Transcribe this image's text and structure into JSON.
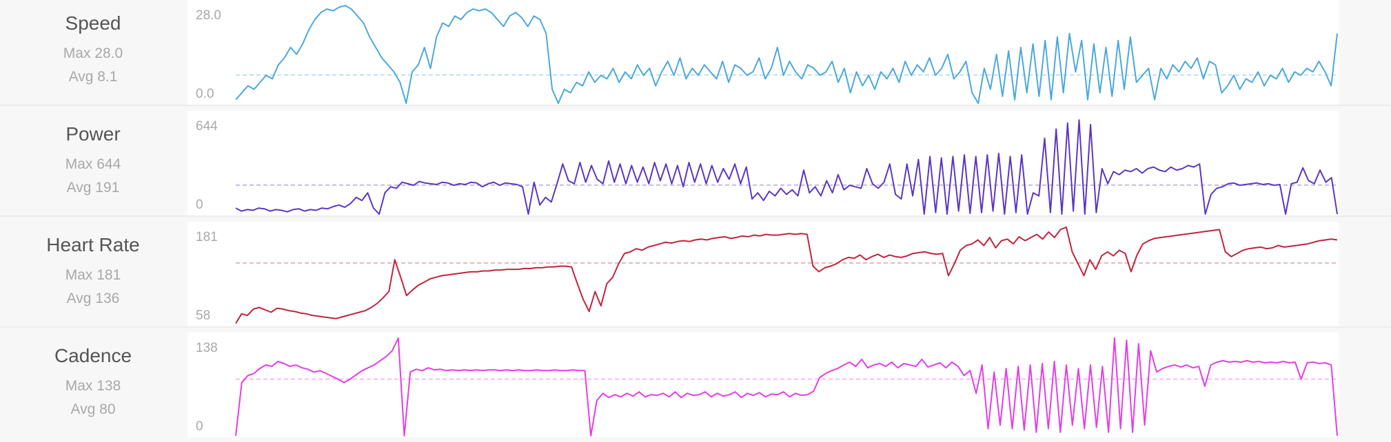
{
  "chart_data": [
    {
      "type": "line",
      "title": "Speed",
      "max_label": "Max 28.0",
      "avg_label": "Avg 8.1",
      "ylim": [
        0,
        28.0
      ],
      "y_ticks": [
        "28.0",
        "0.0"
      ],
      "avg": 8.1,
      "color": "#4aa8dc",
      "grid": false,
      "values": [
        1,
        3,
        5,
        4,
        6,
        8,
        7,
        11,
        13,
        16,
        14,
        17,
        21,
        24,
        26,
        27,
        26.5,
        27.5,
        28,
        27,
        25,
        23,
        19,
        16,
        13,
        11,
        9,
        6,
        0,
        9,
        11,
        16,
        10,
        19,
        23,
        22,
        25,
        24,
        26,
        27,
        26.5,
        27,
        26,
        24,
        22,
        25,
        26,
        24.5,
        22,
        25,
        24,
        20,
        4,
        0,
        4,
        3,
        6,
        5,
        9,
        6,
        8,
        7,
        10,
        6,
        9,
        7,
        11,
        8,
        10,
        5,
        9,
        12,
        8,
        13,
        7,
        10,
        8,
        11,
        9,
        7,
        12,
        6,
        11,
        10,
        8,
        9,
        13,
        7,
        10,
        16,
        8,
        12,
        9,
        7,
        11,
        10,
        8,
        9,
        12,
        6,
        10,
        3,
        9,
        5,
        8,
        4,
        9,
        7,
        10,
        6,
        12,
        8,
        11,
        9,
        13,
        8,
        10,
        14,
        7,
        9,
        12,
        3,
        0,
        10,
        4,
        14,
        2,
        15,
        1,
        16,
        3,
        17,
        2,
        18,
        1,
        19,
        3,
        20,
        9,
        18,
        1,
        17,
        3,
        16,
        2,
        18,
        4,
        19,
        6,
        8,
        10,
        1,
        10,
        7,
        11,
        9,
        12,
        10,
        13,
        7,
        12,
        11,
        3,
        5,
        8,
        4,
        7,
        6,
        9,
        5,
        8,
        7,
        10,
        6,
        9,
        8,
        10,
        9,
        12,
        9,
        5,
        20
      ]
    },
    {
      "type": "line",
      "title": "Power",
      "max_label": "Max 644",
      "avg_label": "Avg 191",
      "ylim": [
        0,
        644
      ],
      "y_ticks": [
        "644",
        "0"
      ],
      "avg": 191,
      "color": "#5b36c2",
      "grid": false,
      "values": [
        40,
        20,
        30,
        25,
        40,
        35,
        20,
        30,
        25,
        15,
        30,
        35,
        20,
        30,
        25,
        40,
        35,
        50,
        60,
        45,
        70,
        110,
        90,
        140,
        40,
        0,
        140,
        180,
        170,
        210,
        200,
        190,
        215,
        205,
        200,
        195,
        210,
        205,
        190,
        200,
        195,
        210,
        205,
        180,
        200,
        210,
        190,
        205,
        200,
        195,
        180,
        0,
        210,
        60,
        110,
        80,
        200,
        330,
        220,
        200,
        340,
        210,
        320,
        230,
        200,
        350,
        210,
        330,
        200,
        320,
        210,
        310,
        200,
        340,
        220,
        330,
        200,
        320,
        180,
        340,
        210,
        330,
        200,
        320,
        210,
        300,
        230,
        330,
        200,
        310,
        100,
        140,
        90,
        150,
        120,
        170,
        130,
        160,
        120,
        290,
        140,
        180,
        120,
        220,
        140,
        260,
        160,
        190,
        180,
        170,
        300,
        200,
        170,
        210,
        330,
        130,
        100,
        330,
        120,
        360,
        0,
        380,
        10,
        370,
        0,
        380,
        20,
        390,
        5,
        380,
        10,
        390,
        20,
        400,
        0,
        380,
        10,
        390,
        0,
        140,
        120,
        500,
        10,
        560,
        0,
        600,
        20,
        620,
        0,
        590,
        10,
        300,
        200,
        280,
        260,
        290,
        280,
        300,
        270,
        300,
        310,
        290,
        280,
        310,
        290,
        300,
        320,
        310,
        330,
        0,
        130,
        170,
        180,
        200,
        205,
        190,
        195,
        200,
        205,
        195,
        200,
        190,
        195,
        0,
        200,
        210,
        305,
        220,
        200,
        290,
        210,
        240,
        0
      ]
    },
    {
      "type": "line",
      "title": "Heart Rate",
      "max_label": "Max 181",
      "avg_label": "Avg 136",
      "ylim": [
        58,
        181
      ],
      "y_ticks": [
        "181",
        "58"
      ],
      "avg": 136,
      "color": "#c0243c",
      "grid": false,
      "values": [
        60,
        72,
        70,
        78,
        80,
        77,
        74,
        79,
        78,
        76,
        75,
        73,
        72,
        70,
        69,
        68,
        67,
        66,
        68,
        70,
        72,
        74,
        76,
        80,
        85,
        92,
        100,
        140,
        118,
        95,
        102,
        108,
        112,
        116,
        118,
        120,
        121,
        122,
        123,
        124,
        125,
        125,
        126,
        126,
        127,
        127,
        128,
        128,
        128,
        129,
        129,
        130,
        130,
        131,
        131,
        132,
        132,
        131,
        110,
        90,
        75,
        100,
        82,
        110,
        118,
        135,
        148,
        150,
        154,
        152,
        156,
        158,
        160,
        162,
        161,
        163,
        164,
        163,
        165,
        166,
        165,
        167,
        168,
        169,
        167,
        168,
        170,
        169,
        171,
        170,
        172,
        171,
        171,
        172,
        173,
        172,
        173,
        172,
        132,
        125,
        130,
        132,
        135,
        140,
        143,
        142,
        146,
        140,
        144,
        147,
        143,
        146,
        144,
        143,
        145,
        148,
        149,
        150,
        148,
        147,
        148,
        120,
        135,
        152,
        158,
        160,
        165,
        158,
        168,
        155,
        164,
        166,
        160,
        169,
        164,
        168,
        172,
        166,
        175,
        168,
        178,
        181,
        150,
        135,
        120,
        140,
        128,
        145,
        150,
        145,
        152,
        148,
        125,
        146,
        160,
        164,
        167,
        168,
        169,
        170,
        171,
        172,
        173,
        174,
        175,
        176,
        177,
        178,
        150,
        144,
        148,
        152,
        154,
        155,
        156,
        154,
        155,
        158,
        156,
        157,
        158,
        159,
        160,
        162,
        164,
        165,
        166,
        165
      ]
    },
    {
      "type": "line",
      "title": "Cadence",
      "max_label": "Max 138",
      "avg_label": "Avg 80",
      "ylim": [
        0,
        138
      ],
      "y_ticks": [
        "138",
        "0"
      ],
      "avg": 80,
      "color": "#e33de6",
      "grid": false,
      "values": [
        0,
        75,
        85,
        88,
        95,
        100,
        98,
        105,
        102,
        98,
        100,
        96,
        94,
        90,
        92,
        88,
        84,
        80,
        75,
        80,
        86,
        92,
        96,
        100,
        106,
        112,
        120,
        138,
        0,
        90,
        94,
        92,
        96,
        93,
        94,
        92,
        93,
        92,
        93,
        92,
        93,
        92,
        93,
        93,
        92,
        93,
        92,
        93,
        92,
        92,
        93,
        92,
        92,
        93,
        92,
        92,
        93,
        92,
        92,
        0,
        50,
        60,
        54,
        58,
        55,
        60,
        56,
        62,
        55,
        58,
        57,
        60,
        55,
        62,
        54,
        60,
        57,
        58,
        62,
        55,
        60,
        56,
        58,
        62,
        54,
        60,
        57,
        61,
        55,
        59,
        58,
        62,
        55,
        60,
        57,
        58,
        63,
        82,
        88,
        92,
        95,
        100,
        104,
        98,
        108,
        96,
        100,
        102,
        98,
        104,
        96,
        102,
        100,
        98,
        108,
        97,
        100,
        103,
        96,
        104,
        98,
        85,
        92,
        60,
        100,
        10,
        90,
        15,
        95,
        10,
        98,
        8,
        100,
        5,
        102,
        10,
        105,
        5,
        100,
        15,
        95,
        10,
        100,
        12,
        98,
        5,
        138,
        10,
        135,
        5,
        130,
        15,
        120,
        90,
        95,
        98,
        100,
        97,
        100,
        96,
        98,
        70,
        100,
        104,
        106,
        104,
        105,
        104,
        106,
        104,
        105,
        103,
        104,
        103,
        105,
        103,
        104,
        80,
        103,
        104,
        102,
        103,
        100,
        0
      ]
    }
  ]
}
